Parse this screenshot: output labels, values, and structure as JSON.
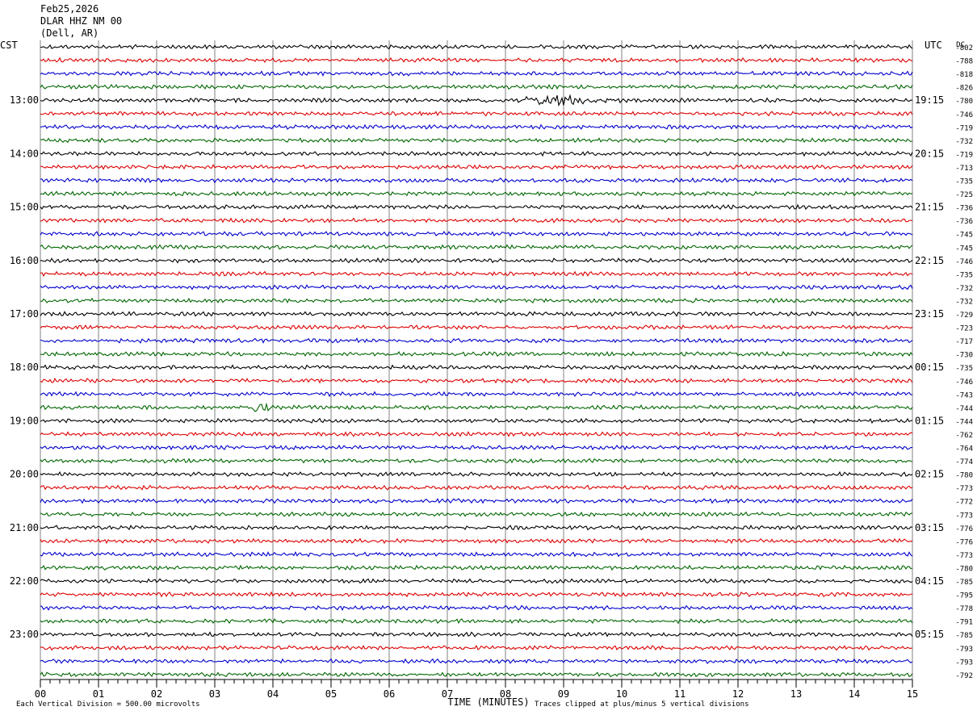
{
  "header": {
    "date": "Feb25,2026",
    "station": "DLAR HHZ NM 00",
    "location": "(Dell, AR)"
  },
  "labels": {
    "left_timezone": "CST",
    "right_timezone": "UTC",
    "dc_header": "DC",
    "x_axis_title": "TIME (MINUTES)",
    "scale_note": "Each Vertical Division =  500.00 microvolts",
    "clip_note": "Traces clipped at plus/minus 5 vertical divisions"
  },
  "colors": {
    "trace_cycle": [
      "#000000",
      "#dd0000",
      "#0000cc",
      "#006600"
    ],
    "grid": "#808080",
    "background": "#ffffff"
  },
  "chart_data": {
    "type": "line",
    "title": "DLAR HHZ NM 00",
    "xlabel": "TIME (MINUTES)",
    "xlim": [
      0,
      15
    ],
    "x_ticks": [
      "00",
      "01",
      "02",
      "03",
      "04",
      "05",
      "06",
      "07",
      "08",
      "09",
      "10",
      "11",
      "12",
      "13",
      "14",
      "15"
    ],
    "minutes_per_line": 15,
    "left_time_labels": [
      {
        "row": 4,
        "text": "13:00"
      },
      {
        "row": 8,
        "text": "14:00"
      },
      {
        "row": 12,
        "text": "15:00"
      },
      {
        "row": 16,
        "text": "16:00"
      },
      {
        "row": 20,
        "text": "17:00"
      },
      {
        "row": 24,
        "text": "18:00"
      },
      {
        "row": 28,
        "text": "19:00"
      },
      {
        "row": 32,
        "text": "20:00"
      },
      {
        "row": 36,
        "text": "21:00"
      },
      {
        "row": 40,
        "text": "22:00"
      },
      {
        "row": 44,
        "text": "23:00"
      }
    ],
    "right_time_labels": [
      {
        "row": 4,
        "text": "19:15"
      },
      {
        "row": 8,
        "text": "20:15"
      },
      {
        "row": 12,
        "text": "21:15"
      },
      {
        "row": 16,
        "text": "22:15"
      },
      {
        "row": 20,
        "text": "23:15"
      },
      {
        "row": 24,
        "text": "00:15"
      },
      {
        "row": 28,
        "text": "01:15"
      },
      {
        "row": 32,
        "text": "02:15"
      },
      {
        "row": 36,
        "text": "03:15"
      },
      {
        "row": 40,
        "text": "04:15"
      },
      {
        "row": 44,
        "text": "05:15"
      }
    ],
    "dc_offsets": [
      "-802",
      "-788",
      "-818",
      "-826",
      "-780",
      "-746",
      "-719",
      "-732",
      "-719",
      "-713",
      "-735",
      "-725",
      "-736",
      "-736",
      "-745",
      "-745",
      "-746",
      "-735",
      "-732",
      "-732",
      "-729",
      "-723",
      "-717",
      "-730",
      "-735",
      "-746",
      "-743",
      "-744",
      "-744",
      "-762",
      "-764",
      "-774",
      "-780",
      "-773",
      "-772",
      "-773",
      "-776",
      "-776",
      "-773",
      "-780",
      "-785",
      "-795",
      "-778",
      "-791",
      "-785",
      "-793",
      "-793",
      "-792"
    ],
    "events": [
      {
        "row": 4,
        "minute": 8.9,
        "description": "local seismic event burst"
      },
      {
        "row": 27,
        "minute": 3.8,
        "description": "small spike"
      }
    ],
    "scale_microvolts_per_division": 500.0,
    "clip_divisions": 5
  }
}
